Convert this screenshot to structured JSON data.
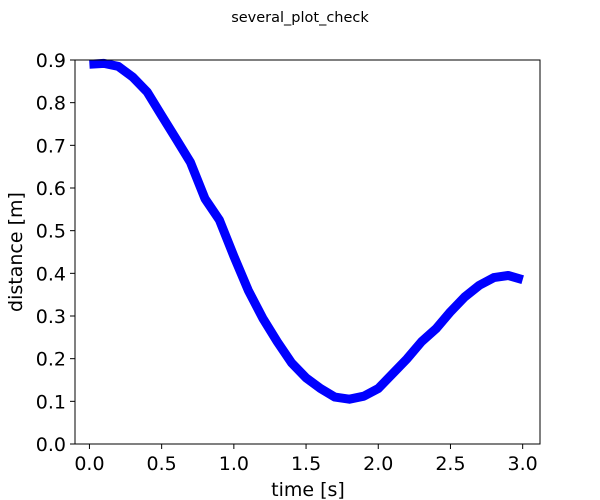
{
  "figure": {
    "suptitle": "several_plot_check"
  },
  "chart_data": {
    "type": "line",
    "title": "several_plot_check",
    "xlabel": "time [s]",
    "ylabel": "distance [m]",
    "xlim": [
      -0.1,
      3.12
    ],
    "ylim": [
      0.0,
      0.9
    ],
    "xticks": [
      0.0,
      0.5,
      1.0,
      1.5,
      2.0,
      2.5,
      3.0
    ],
    "xtick_labels": [
      "0.0",
      "0.5",
      "1.0",
      "1.5",
      "2.0",
      "2.5",
      "3.0"
    ],
    "yticks": [
      0.0,
      0.1,
      0.2,
      0.3,
      0.4,
      0.5,
      0.6,
      0.7,
      0.8,
      0.9
    ],
    "ytick_labels": [
      "0.0",
      "0.1",
      "0.2",
      "0.3",
      "0.4",
      "0.5",
      "0.6",
      "0.7",
      "0.8",
      "0.9"
    ],
    "grid": false,
    "legend": "none",
    "series": [
      {
        "color": "#0000ff",
        "x": [
          0.0,
          0.1,
          0.2,
          0.3,
          0.4,
          0.5,
          0.6,
          0.7,
          0.8,
          0.9,
          1.0,
          1.1,
          1.2,
          1.3,
          1.4,
          1.5,
          1.6,
          1.7,
          1.8,
          1.9,
          2.0,
          2.1,
          2.2,
          2.3,
          2.4,
          2.5,
          2.6,
          2.7,
          2.8,
          2.9,
          3.0
        ],
        "y": [
          0.89,
          0.892,
          0.885,
          0.86,
          0.825,
          0.77,
          0.715,
          0.66,
          0.575,
          0.525,
          0.44,
          0.36,
          0.295,
          0.24,
          0.19,
          0.155,
          0.13,
          0.11,
          0.105,
          0.112,
          0.13,
          0.165,
          0.2,
          0.24,
          0.27,
          0.31,
          0.345,
          0.372,
          0.39,
          0.395,
          0.385
        ]
      }
    ]
  }
}
